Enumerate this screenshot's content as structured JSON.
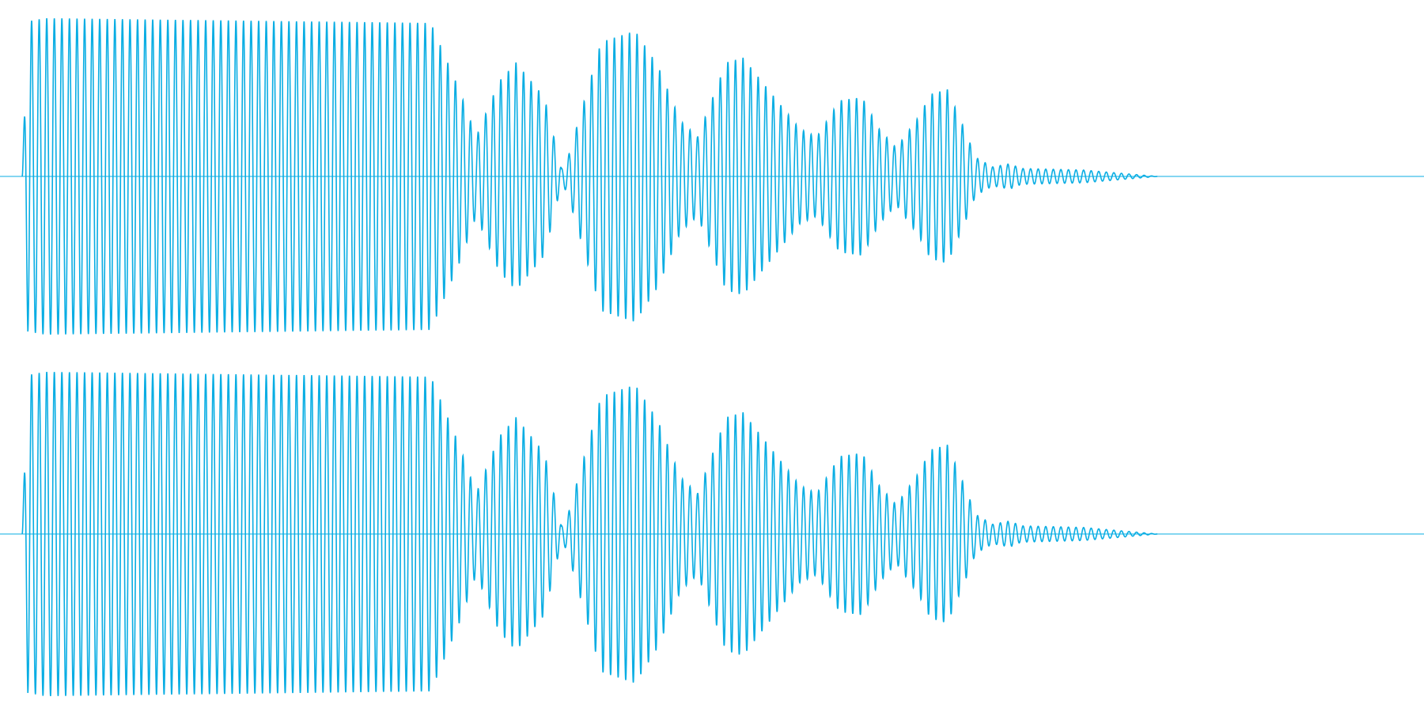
{
  "colors": {
    "background": "#ffffff",
    "waveform": "#08ADE3"
  },
  "chart_data": {
    "type": "area",
    "description_of_axes": "",
    "channels": 2,
    "x_range": [
      0,
      1
    ],
    "y_range": [
      -1,
      1
    ],
    "grid": false,
    "legend": "none",
    "envelope_keyframes": {
      "t": [
        0.0,
        0.005,
        0.02,
        0.36,
        0.385,
        0.4,
        0.42,
        0.435,
        0.46,
        0.475,
        0.48,
        0.49,
        0.51,
        0.54,
        0.56,
        0.58,
        0.595,
        0.62,
        0.635,
        0.665,
        0.685,
        0.7,
        0.72,
        0.74,
        0.755,
        0.77,
        0.79,
        0.8,
        0.815,
        0.83,
        0.84,
        0.855,
        0.87,
        0.88,
        0.935,
        1.0
      ],
      "amplitude": [
        0.0,
        0.98,
        1.0,
        0.97,
        0.55,
        0.25,
        0.6,
        0.72,
        0.5,
        0.05,
        0.1,
        0.35,
        0.85,
        0.92,
        0.7,
        0.35,
        0.25,
        0.72,
        0.75,
        0.48,
        0.3,
        0.25,
        0.48,
        0.5,
        0.3,
        0.18,
        0.38,
        0.52,
        0.55,
        0.3,
        0.12,
        0.06,
        0.08,
        0.05,
        0.04,
        0.0
      ]
    },
    "carrier_cycles": 150
  }
}
